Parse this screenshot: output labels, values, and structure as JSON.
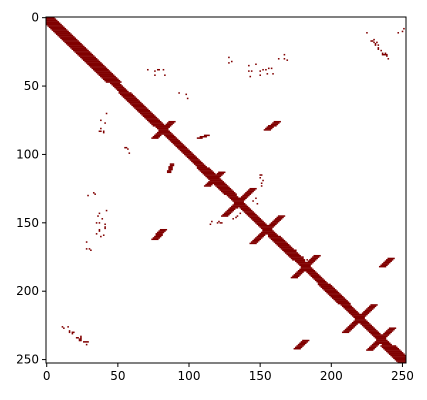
{
  "chart_data": {
    "type": "heatmap",
    "title": "",
    "xlabel": "",
    "ylabel": "",
    "xlim": [
      0,
      253
    ],
    "ylim": [
      253,
      0
    ],
    "x_ticks": [
      "0",
      "50",
      "100",
      "150",
      "200",
      "250"
    ],
    "y_ticks": [
      "0",
      "50",
      "100",
      "150",
      "200",
      "250"
    ],
    "grid": false,
    "legend": "none",
    "colors": {
      "contact": "#800000",
      "background": "#ffffff",
      "axes": "#000000"
    },
    "matrix_size": 253,
    "diagonal_band": {
      "from": 0,
      "to": 253,
      "half_width": 3
    },
    "thick_segments": [
      {
        "from": 0,
        "to": 48,
        "half_width": 5
      },
      {
        "from": 55,
        "to": 80,
        "half_width": 4
      },
      {
        "from": 110,
        "to": 130,
        "half_width": 4
      },
      {
        "from": 160,
        "to": 178,
        "half_width": 4
      },
      {
        "from": 195,
        "to": 210,
        "half_width": 4
      },
      {
        "from": 240,
        "to": 253,
        "half_width": 5
      }
    ],
    "antiparallel_pairs": [
      {
        "center": 82,
        "half_length": 6,
        "half_width": 2
      },
      {
        "center": 118,
        "half_length": 5,
        "half_width": 2
      },
      {
        "center": 135,
        "half_length": 10,
        "half_width": 2
      },
      {
        "center": 155,
        "half_length": 10,
        "half_width": 2
      },
      {
        "center": 182,
        "half_length": 8,
        "half_width": 2
      },
      {
        "center": 220,
        "half_length": 10,
        "half_width": 2
      },
      {
        "center": 235,
        "half_length": 8,
        "half_width": 2
      }
    ],
    "off_diagonal_segments": [
      {
        "x0": 155,
        "y0": 82,
        "x1": 162,
        "y1": 76,
        "half_width": 2
      },
      {
        "x0": 82,
        "y0": 155,
        "x1": 76,
        "y1": 162,
        "half_width": 2
      },
      {
        "x0": 236,
        "y0": 182,
        "x1": 242,
        "y1": 176,
        "half_width": 2
      },
      {
        "x0": 182,
        "y0": 236,
        "x1": 176,
        "y1": 242,
        "half_width": 2
      },
      {
        "x0": 107,
        "y0": 88,
        "x1": 113,
        "y1": 86,
        "half_width": 1
      },
      {
        "x0": 88,
        "y0": 107,
        "x1": 86,
        "y1": 113,
        "half_width": 1
      }
    ],
    "sparse_regions": [
      {
        "x0": 226,
        "x1": 240,
        "y0": 12,
        "y1": 30,
        "count": 24,
        "diagonal": true
      },
      {
        "x0": 12,
        "x1": 30,
        "y0": 226,
        "y1": 240,
        "count": 24,
        "diagonal": true
      },
      {
        "x0": 140,
        "x1": 160,
        "y0": 34,
        "y1": 44,
        "count": 14,
        "diagonal": false
      },
      {
        "x0": 34,
        "x1": 44,
        "y0": 140,
        "y1": 160,
        "count": 14,
        "diagonal": false
      },
      {
        "x0": 70,
        "x1": 84,
        "y0": 36,
        "y1": 42,
        "count": 8,
        "diagonal": false
      },
      {
        "x0": 36,
        "x1": 42,
        "y0": 70,
        "y1": 84,
        "count": 8,
        "diagonal": false
      },
      {
        "x0": 163,
        "x1": 170,
        "y0": 27,
        "y1": 32,
        "count": 4,
        "diagonal": false
      },
      {
        "x0": 27,
        "x1": 32,
        "y0": 163,
        "y1": 170,
        "count": 4,
        "diagonal": false
      },
      {
        "x0": 245,
        "x1": 252,
        "y0": 6,
        "y1": 12,
        "count": 4,
        "diagonal": false
      },
      {
        "x0": 92,
        "x1": 100,
        "y0": 55,
        "y1": 60,
        "count": 4,
        "diagonal": false
      },
      {
        "x0": 55,
        "x1": 60,
        "y0": 92,
        "y1": 100,
        "count": 4,
        "diagonal": false
      },
      {
        "x0": 128,
        "x1": 138,
        "y0": 138,
        "y1": 150,
        "count": 6,
        "diagonal": false
      },
      {
        "x0": 138,
        "x1": 150,
        "y0": 128,
        "y1": 138,
        "count": 6,
        "diagonal": false
      },
      {
        "x0": 168,
        "x1": 190,
        "y0": 170,
        "y1": 180,
        "count": 10,
        "diagonal": false
      },
      {
        "x0": 28,
        "x1": 34,
        "y0": 124,
        "y1": 130,
        "count": 3,
        "diagonal": false
      },
      {
        "x0": 124,
        "x1": 130,
        "y0": 28,
        "y1": 34,
        "count": 3,
        "diagonal": false
      },
      {
        "x0": 115,
        "x1": 123,
        "y0": 148,
        "y1": 152,
        "count": 6,
        "diagonal": false
      },
      {
        "x0": 148,
        "x1": 152,
        "y0": 115,
        "y1": 123,
        "count": 6,
        "diagonal": false
      }
    ]
  }
}
